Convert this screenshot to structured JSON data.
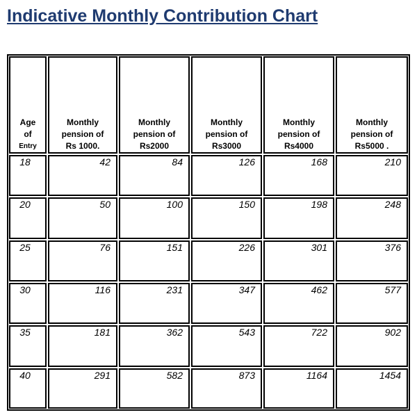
{
  "title": "Indicative Monthly Contribution Chart",
  "table": {
    "header": [
      [
        "Age",
        "of",
        "Entry"
      ],
      [
        "Monthly",
        "pension of",
        "Rs 1000."
      ],
      [
        "Monthly",
        "pension of",
        "Rs2000"
      ],
      [
        "Monthly",
        "pension of",
        "Rs3000"
      ],
      [
        "Monthly",
        "pension of",
        "Rs4000"
      ],
      [
        "Monthly",
        "pension of",
        "Rs5000 ."
      ]
    ],
    "rows": [
      [
        18,
        42,
        84,
        126,
        168,
        210
      ],
      [
        20,
        50,
        100,
        150,
        198,
        248
      ],
      [
        25,
        76,
        151,
        226,
        301,
        376
      ],
      [
        30,
        116,
        231,
        347,
        462,
        577
      ],
      [
        35,
        181,
        362,
        543,
        722,
        902
      ],
      [
        40,
        291,
        582,
        873,
        1164,
        1454
      ]
    ]
  }
}
